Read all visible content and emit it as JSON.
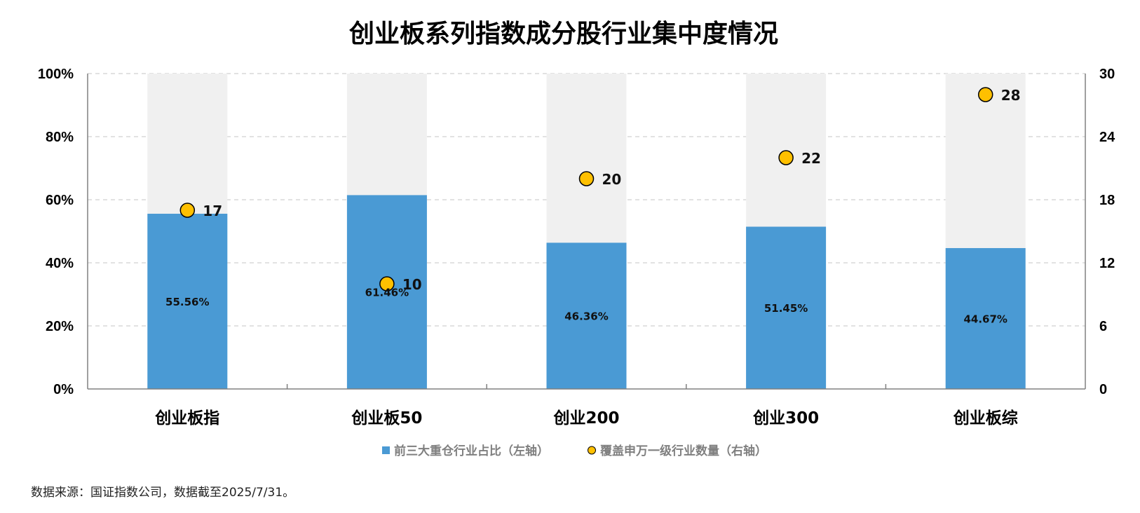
{
  "chart_data": {
    "type": "bar",
    "title": "创业板系列指数成分股行业集中度情况",
    "categories": [
      "创业板指",
      "创业板50",
      "创业200",
      "创业300",
      "创业板综"
    ],
    "series": [
      {
        "name": "前三大重仓行业占比（左轴）",
        "values": [
          55.56,
          61.46,
          46.36,
          51.45,
          44.67
        ],
        "labels": [
          "55.56%",
          "61.46%",
          "46.36%",
          "51.45%",
          "44.67%"
        ],
        "axis": "left",
        "kind": "bar"
      },
      {
        "name": "覆盖申万一级行业数量（右轴）",
        "values": [
          17,
          10,
          20,
          22,
          28
        ],
        "labels": [
          "17",
          "10",
          "20",
          "22",
          "28"
        ],
        "axis": "right",
        "kind": "scatter"
      }
    ],
    "background_bar_value": 100,
    "y_left": {
      "ylim": [
        0,
        100
      ],
      "ticks": [
        "0%",
        "20%",
        "40%",
        "60%",
        "80%",
        "100%"
      ]
    },
    "y_right": {
      "ylim": [
        0,
        30
      ],
      "ticks": [
        "0",
        "6",
        "12",
        "18",
        "24",
        "30"
      ]
    },
    "grid": "horizontal-dashed",
    "legend_position": "bottom",
    "colors": {
      "bar": "#4a9ad4",
      "background_bar": "#f0f0f0",
      "marker": "#ffc000",
      "marker_edge": "#000000",
      "grid": "#d0d0d0",
      "axis": "#808080"
    }
  },
  "source_note": "数据来源：国证指数公司，数据截至2025/7/31。"
}
